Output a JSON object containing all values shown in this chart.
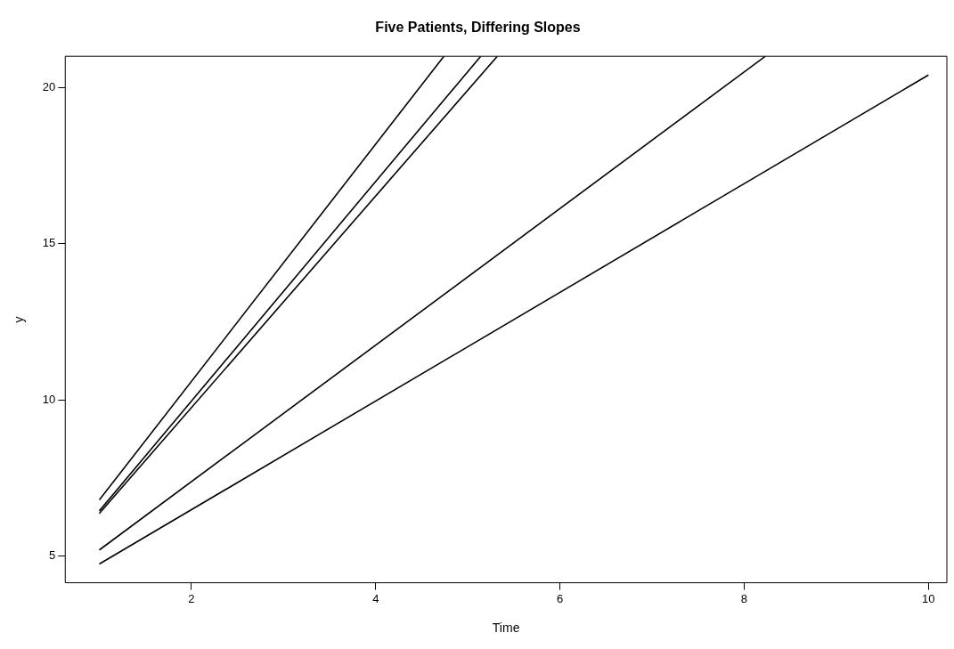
{
  "chart_data": {
    "type": "line",
    "title": "Five Patients, Differing Slopes",
    "xlabel": "Time",
    "ylabel": "y",
    "xlim": [
      0.63,
      10.2
    ],
    "ylim": [
      4.15,
      21
    ],
    "xticks": [
      2,
      4,
      6,
      8,
      10
    ],
    "yticks": [
      5,
      10,
      15,
      20
    ],
    "marker": "none",
    "line_style": "solid",
    "legend": false,
    "series": [
      {
        "color": "#000000",
        "x": [
          1,
          4.74
        ],
        "values": [
          6.8,
          21
        ]
      },
      {
        "color": "#000000",
        "x": [
          1,
          5.14
        ],
        "values": [
          6.45,
          21
        ]
      },
      {
        "color": "#000000",
        "x": [
          1,
          5.32
        ],
        "values": [
          6.37,
          21
        ]
      },
      {
        "color": "#000000",
        "x": [
          1,
          8.23
        ],
        "values": [
          5.2,
          21
        ]
      },
      {
        "color": "#000000",
        "x": [
          1,
          10
        ],
        "values": [
          4.75,
          20.4
        ]
      }
    ]
  }
}
